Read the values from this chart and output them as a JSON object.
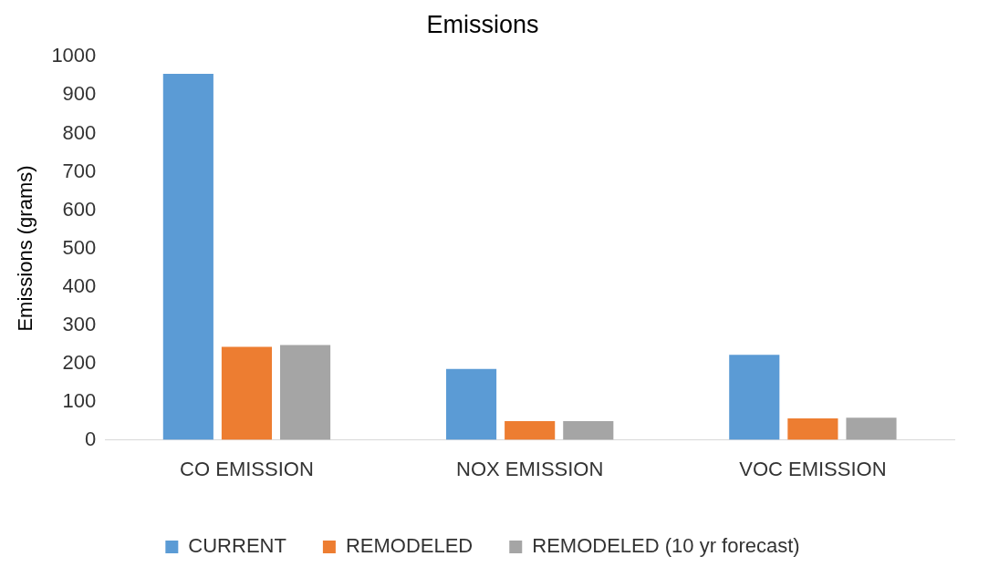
{
  "chart_data": {
    "type": "bar",
    "title": "Emissions",
    "ylabel": "Emissions (grams)",
    "categories": [
      "CO EMISSION",
      "NOX EMISSION",
      "VOC EMISSION"
    ],
    "series": [
      {
        "name": "CURRENT",
        "color": "#5b9bd5",
        "values": [
          956,
          185,
          222
        ]
      },
      {
        "name": "REMODELED",
        "color": "#ed7d31",
        "values": [
          243,
          49,
          56
        ]
      },
      {
        "name": "REMODELED (10 yr forecast)",
        "color": "#a5a5a5",
        "values": [
          248,
          49,
          58
        ]
      }
    ],
    "ylim": [
      0,
      1000
    ],
    "yticks": [
      0,
      100,
      200,
      300,
      400,
      500,
      600,
      700,
      800,
      900,
      1000
    ],
    "grid": false,
    "legend": "bottom"
  }
}
